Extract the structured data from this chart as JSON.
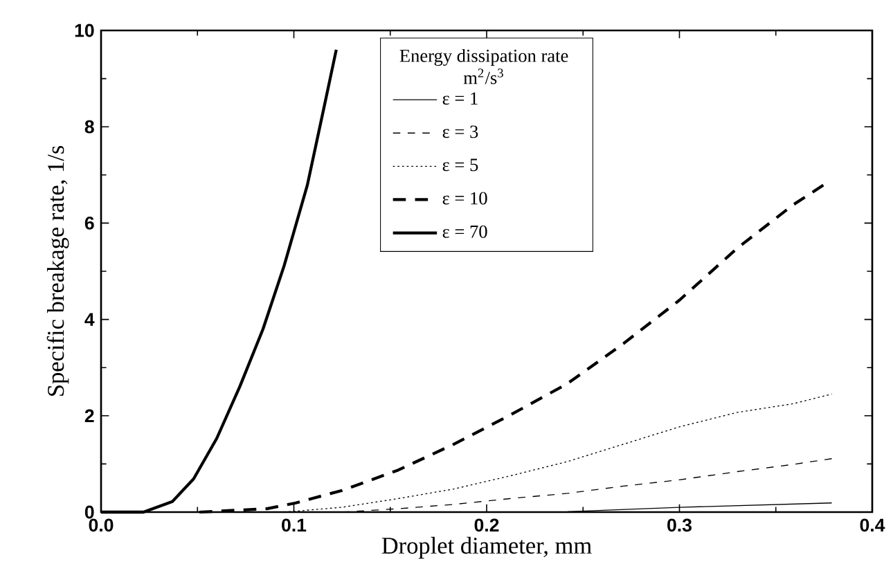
{
  "chart_data": {
    "type": "line",
    "xlabel": "Droplet diameter, mm",
    "ylabel": "Specific breakage rate, 1/s",
    "legend_title": "Energy dissipation rate m$^{2}$/s$^{3}$",
    "legend": "top",
    "xlim": [
      0,
      0.4
    ],
    "ylim": [
      0,
      10
    ],
    "xticks": [
      {
        "value": 0,
        "label": "0.0"
      },
      0.1,
      0.2,
      0.3,
      0.4
    ],
    "yticks": [
      0,
      2,
      4,
      6,
      8,
      10
    ],
    "grid": false,
    "marker": "none",
    "series": [
      {
        "name": "ε = 1",
        "color": "#000000",
        "line_style": "solid",
        "x": [
          0.183,
          0.242,
          0.3,
          0.379
        ],
        "values": [
          0,
          0.01,
          0.1,
          0.19
        ]
      },
      {
        "name": "ε = 3",
        "color": "#000000",
        "line_style": "dashed",
        "x": [
          0.125,
          0.154,
          0.183,
          0.212,
          0.242,
          0.271,
          0.3,
          0.33,
          0.359,
          0.379
        ],
        "values": [
          0,
          0.07,
          0.16,
          0.28,
          0.39,
          0.54,
          0.67,
          0.84,
          0.99,
          1.11
        ]
      },
      {
        "name": "ε = 5",
        "color": "#000000",
        "line_style": "dotted",
        "x": [
          0.095,
          0.125,
          0.154,
          0.183,
          0.212,
          0.242,
          0.271,
          0.3,
          0.33,
          0.359,
          0.379
        ],
        "values": [
          0,
          0.1,
          0.28,
          0.48,
          0.75,
          1.05,
          1.41,
          1.77,
          2.07,
          2.25,
          2.45
        ]
      },
      {
        "name": "ε = 10",
        "color": "#000000",
        "line_style": "dashed",
        "x": [
          0.051,
          0.086,
          0.101,
          0.125,
          0.154,
          0.183,
          0.212,
          0.242,
          0.271,
          0.3,
          0.33,
          0.359,
          0.377
        ],
        "values": [
          0,
          0.07,
          0.19,
          0.45,
          0.87,
          1.41,
          2.01,
          2.67,
          3.5,
          4.4,
          5.48,
          6.38,
          6.85
        ]
      },
      {
        "name": "ε = 70",
        "color": "#000000",
        "line_style": "solid",
        "x": [
          0,
          0.007,
          0.022,
          0.037,
          0.048,
          0.06,
          0.072,
          0.084,
          0.095,
          0.107,
          0.116,
          0.122
        ],
        "values": [
          0,
          0,
          0,
          0.22,
          0.69,
          1.53,
          2.61,
          3.8,
          5.12,
          6.79,
          8.47,
          9.6
        ]
      }
    ]
  }
}
